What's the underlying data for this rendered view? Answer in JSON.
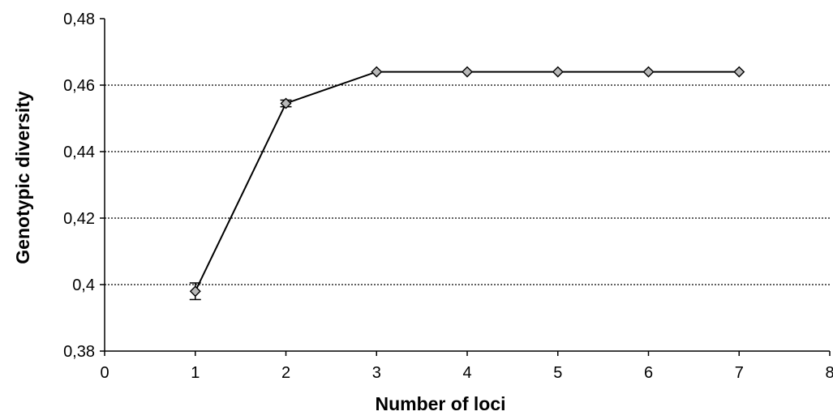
{
  "chart_data": {
    "type": "line",
    "title": "",
    "xlabel": "Number of loci",
    "ylabel": "Genotypic diversity",
    "xlim": [
      0,
      8
    ],
    "ylim": [
      0.38,
      0.48
    ],
    "x_ticks": [
      0,
      1,
      2,
      3,
      4,
      5,
      6,
      7,
      8
    ],
    "x_tick_labels": [
      "0",
      "1",
      "2",
      "3",
      "4",
      "5",
      "6",
      "7",
      "8"
    ],
    "y_ticks": [
      0.38,
      0.4,
      0.42,
      0.44,
      0.46,
      0.48
    ],
    "y_tick_labels": [
      "0,38",
      "0,4",
      "0,42",
      "0,44",
      "0,46",
      "0,48"
    ],
    "grid": "horizontal dotted lines at 0,40, 0,42, 0,44 and 0,46",
    "legend": "none",
    "series": [
      {
        "x": [
          1,
          2,
          3,
          4,
          5,
          6,
          7
        ],
        "y": [
          0.398,
          0.4545,
          0.464,
          0.464,
          0.464,
          0.464,
          0.464
        ],
        "error": [
          0.0025,
          0.001,
          0,
          0,
          0,
          0,
          0
        ],
        "marker": "diamond",
        "marker_color": "#b8b8b8",
        "line_color": "#000000"
      }
    ]
  }
}
